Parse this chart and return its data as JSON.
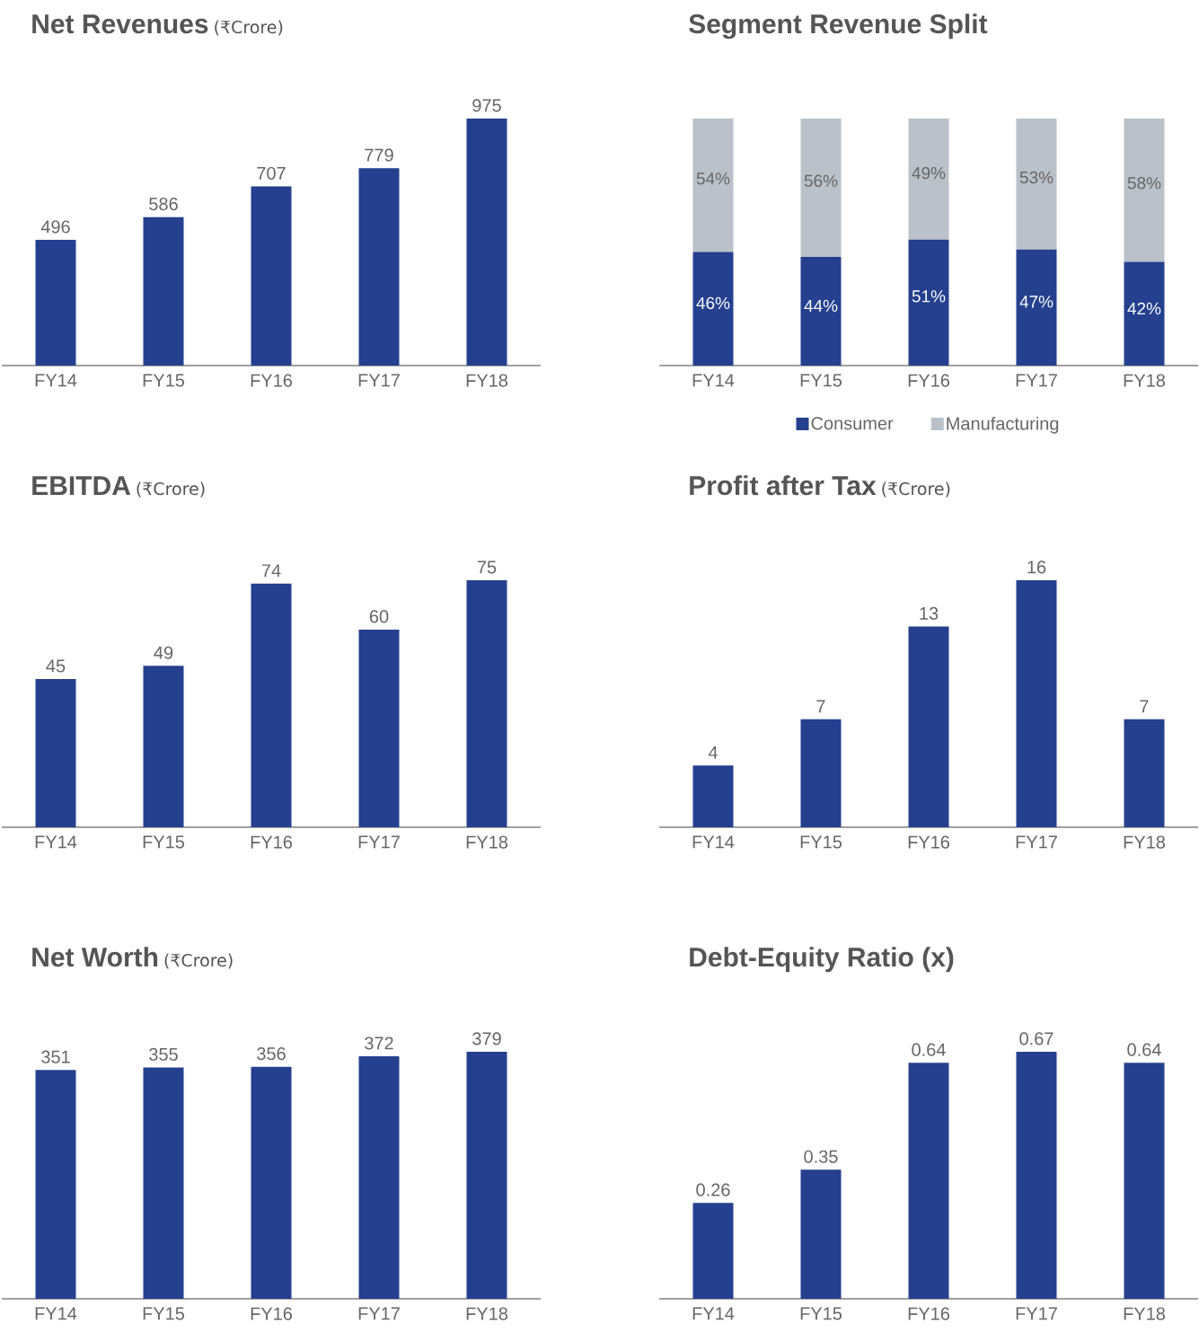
{
  "chart_data": [
    {
      "type": "bar",
      "title": "Net Revenues",
      "subtitle": "(₹Crore)",
      "categories": [
        "FY14",
        "FY15",
        "FY16",
        "FY17",
        "FY18"
      ],
      "values": [
        496,
        586,
        707,
        779,
        975
      ],
      "color": "#24408e",
      "data_labels": true,
      "tick_labels": "x"
    },
    {
      "type": "bar",
      "title": "Segment Revenue Split",
      "categories": [
        "FY14",
        "FY15",
        "FY16",
        "FY17",
        "FY18"
      ],
      "stacked": true,
      "legend": "bottom",
      "tick_labels": "x",
      "series": [
        {
          "name": "Consumer",
          "color": "#24408e",
          "values": [
            46,
            44,
            51,
            47,
            42
          ],
          "value_labels": [
            "46%",
            "44%",
            "51%",
            "47%",
            "42%"
          ]
        },
        {
          "name": "Manufacturing",
          "color": "#bac1c9",
          "values": [
            54,
            56,
            49,
            53,
            58
          ],
          "value_labels": [
            "54%",
            "56%",
            "49%",
            "53%",
            "58%"
          ]
        }
      ]
    },
    {
      "type": "bar",
      "title": "EBITDA",
      "subtitle": "(₹Crore)",
      "categories": [
        "FY14",
        "FY15",
        "FY16",
        "FY17",
        "FY18"
      ],
      "values": [
        45,
        49,
        74,
        60,
        75
      ],
      "color": "#24408e",
      "data_labels": true,
      "tick_labels": "x"
    },
    {
      "type": "bar",
      "title": "Profit after Tax",
      "subtitle": "(₹Crore)",
      "categories": [
        "FY14",
        "FY15",
        "FY16",
        "FY17",
        "FY18"
      ],
      "values": [
        4,
        7,
        13,
        16,
        7
      ],
      "color": "#24408e",
      "data_labels": true,
      "tick_labels": "x"
    },
    {
      "type": "bar",
      "title": "Net Worth",
      "subtitle": "(₹Crore)",
      "categories": [
        "FY14",
        "FY15",
        "FY16",
        "FY17",
        "FY18"
      ],
      "values": [
        351,
        355,
        356,
        372,
        379
      ],
      "color": "#24408e",
      "data_labels": true,
      "tick_labels": "x"
    },
    {
      "type": "bar",
      "title": "Debt-Equity Ratio (x)",
      "categories": [
        "FY14",
        "FY15",
        "FY16",
        "FY17",
        "FY18"
      ],
      "values": [
        0.26,
        0.35,
        0.64,
        0.67,
        0.64
      ],
      "color": "#24408e",
      "data_labels": true,
      "tick_labels": "x"
    }
  ]
}
